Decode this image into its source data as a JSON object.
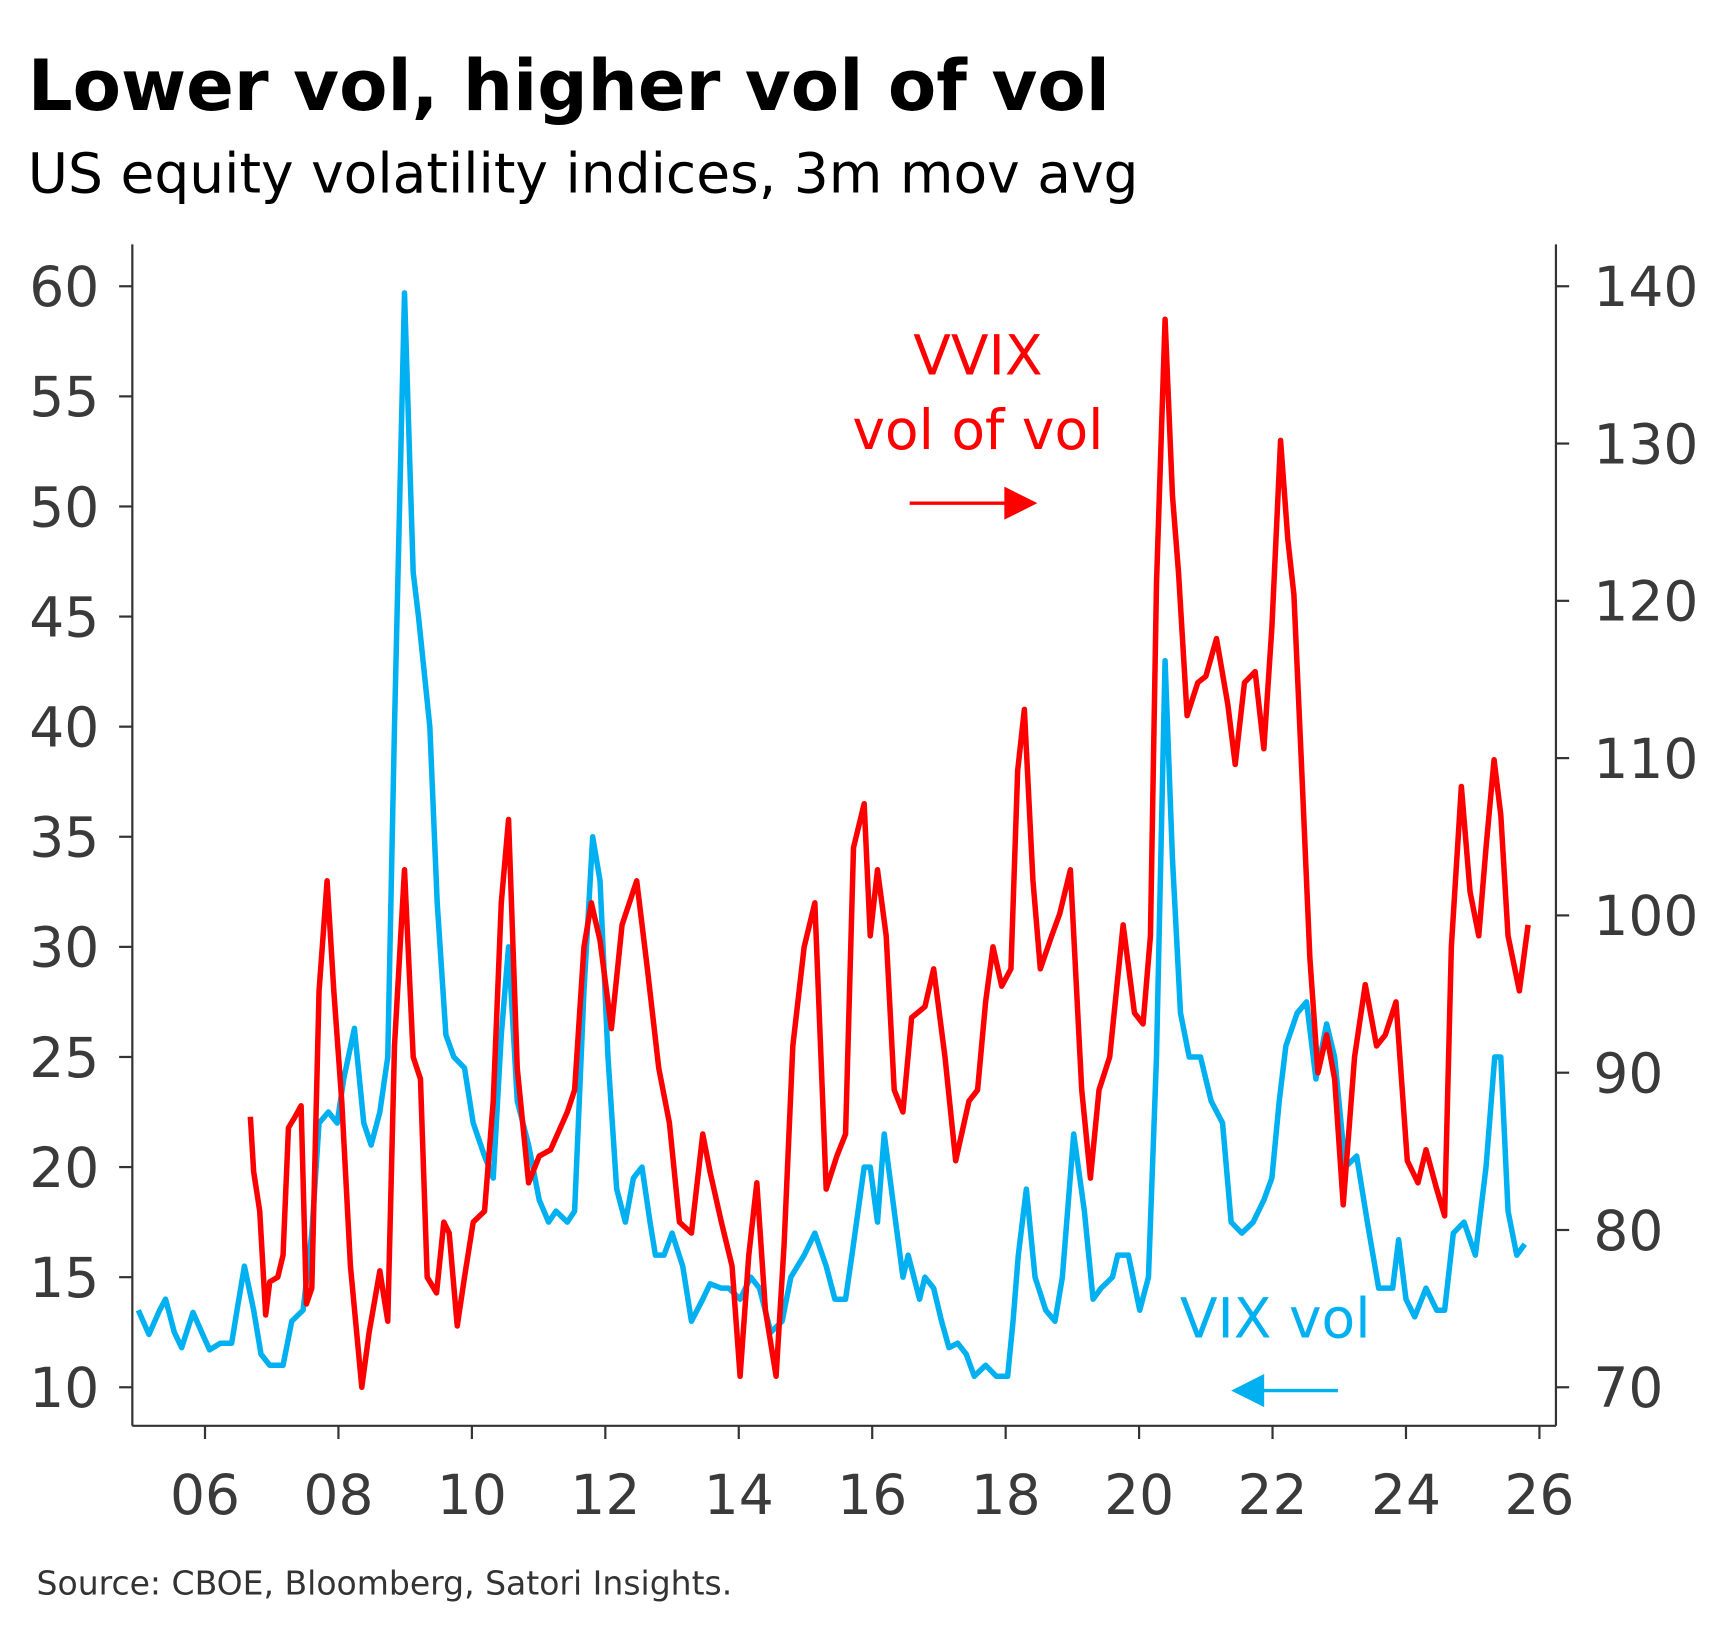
{
  "chart_data": {
    "type": "line",
    "title": "Lower vol, higher vol of vol",
    "subtitle": "US equity volatility indices, 3m mov avg",
    "source": "Source: CBOE, Bloomberg, Satori Insights.",
    "xlim": [
      2005,
      2026
    ],
    "x_ticks": [
      2006,
      2008,
      2010,
      2012,
      2014,
      2016,
      2018,
      2020,
      2022,
      2024,
      2026
    ],
    "x_tick_labels": [
      "06",
      "08",
      "10",
      "12",
      "14",
      "16",
      "18",
      "20",
      "22",
      "24",
      "26"
    ],
    "y_left": {
      "range": [
        10,
        60
      ],
      "ticks": [
        60,
        55,
        50,
        45,
        40,
        35,
        30,
        25,
        20,
        15,
        10
      ],
      "tick_labels": [
        "60",
        "55",
        "50",
        "45",
        "40",
        "35",
        "30",
        "25",
        "20",
        "15",
        "10"
      ]
    },
    "y_right": {
      "range": [
        70,
        140
      ],
      "ticks": [
        140,
        130,
        120,
        110,
        100,
        90,
        80,
        70
      ],
      "tick_labels": [
        "140",
        "130",
        "120",
        "110",
        "100",
        "90",
        "80",
        "70"
      ]
    },
    "grid": false,
    "annotations": {
      "vvix_line1": "VVIX",
      "vvix_line2": "vol of vol",
      "vix": "VIX vol"
    },
    "colors": {
      "vvix": "#ff0000",
      "vix": "#00b0f0"
    },
    "series": [
      {
        "name": "VIX",
        "axis": "left",
        "x": [
          2005.0,
          2005.16,
          2005.32,
          2005.41,
          2005.54,
          2005.65,
          2005.82,
          2005.95,
          2006.07,
          2006.23,
          2006.4,
          2006.48,
          2006.59,
          2006.73,
          2006.84,
          2006.97,
          2007.17,
          2007.3,
          2007.47,
          2007.6,
          2007.71,
          2007.85,
          2007.98,
          2008.08,
          2008.24,
          2008.38,
          2008.49,
          2008.62,
          2008.74,
          2008.84,
          2008.99,
          2009.12,
          2009.2,
          2009.37,
          2009.48,
          2009.61,
          2009.73,
          2009.89,
          2010.02,
          2010.19,
          2010.32,
          2010.44,
          2010.55,
          2010.68,
          2010.85,
          2011.01,
          2011.15,
          2011.26,
          2011.43,
          2011.54,
          2011.68,
          2011.81,
          2011.92,
          2012.04,
          2012.17,
          2012.3,
          2012.42,
          2012.55,
          2012.67,
          2012.75,
          2012.88,
          2013.0,
          2013.16,
          2013.29,
          2013.46,
          2013.57,
          2013.74,
          2013.85,
          2014.02,
          2014.18,
          2014.31,
          2014.48,
          2014.65,
          2014.78,
          2014.98,
          2015.14,
          2015.31,
          2015.44,
          2015.6,
          2015.72,
          2015.88,
          2015.97,
          2016.08,
          2016.18,
          2016.33,
          2016.46,
          2016.54,
          2016.71,
          2016.79,
          2016.92,
          2017.04,
          2017.15,
          2017.28,
          2017.41,
          2017.53,
          2017.7,
          2017.86,
          2018.03,
          2018.11,
          2018.19,
          2018.31,
          2018.44,
          2018.6,
          2018.74,
          2018.85,
          2019.02,
          2019.18,
          2019.31,
          2019.43,
          2019.6,
          2019.68,
          2019.84,
          2020.01,
          2020.14,
          2020.26,
          2020.39,
          2020.5,
          2020.62,
          2020.75,
          2020.92,
          2021.08,
          2021.25,
          2021.38,
          2021.54,
          2021.71,
          2021.87,
          2021.99,
          2022.1,
          2022.2,
          2022.37,
          2022.51,
          2022.65,
          2022.81,
          2022.93,
          2023.09,
          2023.26,
          2023.42,
          2023.59,
          2023.8,
          2023.89,
          2024.0,
          2024.13,
          2024.3,
          2024.46,
          2024.58,
          2024.71,
          2024.87,
          2025.04,
          2025.2,
          2025.33,
          2025.42,
          2025.53,
          2025.66,
          2025.78
        ],
        "values": [
          13.5,
          12.4,
          13.5,
          14,
          12.5,
          11.8,
          13.4,
          12.5,
          11.7,
          12,
          12,
          13.5,
          15.5,
          13.5,
          11.5,
          11,
          11,
          13,
          13.5,
          17,
          22,
          22.5,
          22,
          24,
          26.3,
          22,
          21,
          22.5,
          25,
          40,
          59.7,
          47,
          45,
          40,
          32,
          26,
          25,
          24.5,
          22,
          20.5,
          19.5,
          26,
          30,
          23,
          21,
          18.5,
          17.5,
          18,
          17.5,
          18,
          28,
          35,
          33,
          25,
          19,
          17.5,
          19.5,
          20,
          17.5,
          16,
          16,
          17,
          15.5,
          13,
          14,
          14.7,
          14.5,
          14.5,
          14,
          15,
          14.5,
          12.5,
          13,
          15,
          16,
          17,
          15.5,
          14,
          14,
          16.5,
          20,
          20,
          17.5,
          21.5,
          18,
          15,
          16,
          14,
          15,
          14.5,
          13,
          11.8,
          12,
          11.5,
          10.5,
          11,
          10.5,
          10.5,
          13,
          16,
          19,
          15,
          13.5,
          13,
          15,
          21.5,
          18,
          14,
          14.5,
          15,
          16,
          16,
          13.5,
          15,
          25,
          43,
          34,
          27,
          25,
          25,
          23,
          22,
          17.5,
          17,
          17.5,
          18.5,
          19.5,
          23,
          25.5,
          27,
          27.5,
          24,
          26.5,
          25,
          20,
          20.5,
          17.5,
          14.5,
          14.5,
          16.7,
          14,
          13.2,
          14.5,
          13.5,
          13.5,
          17,
          17.5,
          16,
          20,
          25,
          25,
          18,
          16,
          16.5
        ]
      },
      {
        "name": "VVIX",
        "axis": "right",
        "x": [
          2006.68,
          2006.73,
          2006.82,
          2006.91,
          2006.97,
          2007.09,
          2007.17,
          2007.25,
          2007.35,
          2007.44,
          2007.52,
          2007.6,
          2007.71,
          2007.83,
          2007.93,
          2008.05,
          2008.18,
          2008.35,
          2008.46,
          2008.62,
          2008.74,
          2008.84,
          2008.99,
          2009.12,
          2009.23,
          2009.33,
          2009.47,
          2009.58,
          2009.66,
          2009.78,
          2009.89,
          2010.02,
          2010.19,
          2010.32,
          2010.44,
          2010.55,
          2010.68,
          2010.85,
          2011.01,
          2011.18,
          2011.43,
          2011.54,
          2011.68,
          2011.79,
          2011.92,
          2012.09,
          2012.25,
          2012.47,
          2012.63,
          2012.8,
          2012.96,
          2013.11,
          2013.29,
          2013.46,
          2013.57,
          2013.74,
          2013.9,
          2014.02,
          2014.15,
          2014.27,
          2014.4,
          2014.56,
          2014.68,
          2014.81,
          2014.98,
          2015.14,
          2015.31,
          2015.47,
          2015.6,
          2015.72,
          2015.88,
          2015.97,
          2016.08,
          2016.21,
          2016.33,
          2016.46,
          2016.59,
          2016.79,
          2016.92,
          2017.09,
          2017.25,
          2017.45,
          2017.58,
          2017.7,
          2017.81,
          2017.94,
          2018.08,
          2018.18,
          2018.28,
          2018.41,
          2018.52,
          2018.69,
          2018.81,
          2018.97,
          2019.14,
          2019.27,
          2019.4,
          2019.56,
          2019.76,
          2019.93,
          2020.06,
          2020.17,
          2020.26,
          2020.39,
          2020.5,
          2020.59,
          2020.72,
          2020.88,
          2021.0,
          2021.16,
          2021.33,
          2021.44,
          2021.58,
          2021.74,
          2021.87,
          2021.99,
          2022.12,
          2022.23,
          2022.32,
          2022.43,
          2022.56,
          2022.68,
          2022.81,
          2022.93,
          2023.06,
          2023.23,
          2023.39,
          2023.56,
          2023.69,
          2023.85,
          2024.02,
          2024.18,
          2024.3,
          2024.46,
          2024.58,
          2024.68,
          2024.83,
          2024.96,
          2025.09,
          2025.2,
          2025.32,
          2025.42,
          2025.53,
          2025.7,
          2025.83
        ],
        "values": [
          87.2,
          83.7,
          81.2,
          74.6,
          76.7,
          77,
          78.4,
          86.5,
          87.2,
          87.9,
          75.3,
          76.3,
          95.2,
          102.2,
          95.2,
          88.2,
          77.7,
          70,
          73.5,
          77.4,
          74.2,
          91.7,
          102.9,
          91,
          89.6,
          77,
          76,
          80.5,
          79.8,
          73.9,
          77,
          80.5,
          81.2,
          88.2,
          100.8,
          106.1,
          90.3,
          83,
          84.7,
          85.1,
          87.5,
          88.9,
          98,
          100.8,
          98.4,
          92.8,
          99.4,
          102.2,
          96.6,
          90.3,
          86.8,
          80.5,
          79.8,
          86.1,
          83.7,
          80.5,
          77.7,
          70.7,
          78.4,
          83,
          74.9,
          70.7,
          79.1,
          91.7,
          98,
          100.8,
          82.6,
          84.7,
          86.1,
          104.3,
          107.1,
          98.7,
          102.9,
          98.7,
          88.9,
          87.5,
          93.5,
          94.2,
          96.6,
          91,
          84.4,
          88.2,
          88.9,
          94.5,
          98,
          95.5,
          96.6,
          109.2,
          113.1,
          102.2,
          96.6,
          98.7,
          100.1,
          102.9,
          88.9,
          83.3,
          88.9,
          91,
          99.4,
          93.8,
          93.1,
          98.7,
          121.1,
          137.9,
          126.7,
          121.8,
          112.7,
          114.8,
          115.2,
          117.6,
          113.4,
          109.6,
          114.8,
          115.5,
          110.6,
          118.3,
          130.2,
          123.9,
          120.4,
          109.9,
          97.3,
          90,
          92.4,
          89.6,
          81.6,
          91,
          95.6,
          91.7,
          92.4,
          94.5,
          84.4,
          83,
          85.1,
          82.6,
          80.9,
          98,
          108.2,
          101.5,
          98.7,
          104.3,
          109.9,
          106.4,
          98.7,
          95.2,
          99.4
        ]
      }
    ]
  }
}
